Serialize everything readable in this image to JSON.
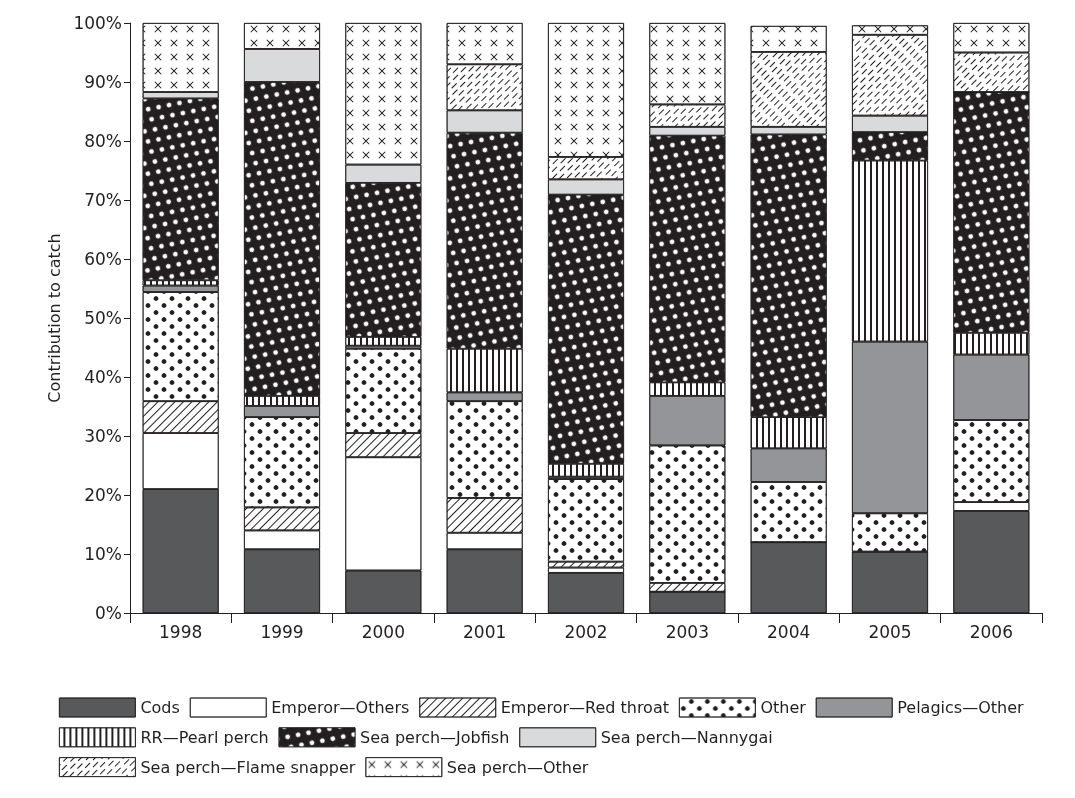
{
  "chart_data": {
    "type": "bar",
    "stacked": true,
    "ylabel": "Contribution to catch",
    "legend": "bottom",
    "categories": [
      "1998",
      "1999",
      "2000",
      "2001",
      "2002",
      "2003",
      "2004",
      "2005",
      "2006"
    ],
    "ylim": [
      0,
      100
    ],
    "yticks": [
      {
        "value": 0,
        "label": "0%"
      },
      {
        "value": 10,
        "label": "10%"
      },
      {
        "value": 20,
        "label": "20%"
      },
      {
        "value": 30,
        "label": "30%"
      },
      {
        "value": 40,
        "label": "40%"
      },
      {
        "value": 50,
        "label": "50%"
      },
      {
        "value": 60,
        "label": "60%"
      },
      {
        "value": 70,
        "label": "70%"
      },
      {
        "value": 80,
        "label": "80%"
      },
      {
        "value": 90,
        "label": "90%"
      },
      {
        "value": 100,
        "label": "100%"
      }
    ],
    "series": [
      {
        "name": "Cods",
        "color": "#58595b",
        "values": [
          21.0,
          10.8,
          7.2,
          10.8,
          6.8,
          3.6,
          12.0,
          10.4,
          17.3
        ]
      },
      {
        "name": "Emperor—Others",
        "color": "#ffffff",
        "values": [
          9.5,
          3.2,
          19.2,
          2.8,
          0.9,
          0,
          0,
          0,
          1.5
        ]
      },
      {
        "name": "Emperor—Red throat",
        "color": "#ffffff",
        "values": [
          5.4,
          3.9,
          4.1,
          5.9,
          1.0,
          1.5,
          0,
          0,
          0
        ]
      },
      {
        "name": "Other",
        "color": "#ffffff",
        "values": [
          18.5,
          15.3,
          14.3,
          16.4,
          14.0,
          23.3,
          10.2,
          6.5,
          13.9
        ]
      },
      {
        "name": "Pelagics—Other",
        "color": "#939598",
        "values": [
          1.1,
          1.9,
          0.5,
          1.5,
          0.4,
          8.4,
          5.7,
          29.1,
          11.1
        ]
      },
      {
        "name": "RR—Pearl perch",
        "color": "#ffffff",
        "values": [
          0.9,
          1.7,
          1.5,
          7.4,
          2.2,
          2.3,
          5.3,
          30.7,
          3.7
        ]
      },
      {
        "name": "Sea perch—Jobfish",
        "color": "#231f20",
        "values": [
          30.8,
          53.2,
          26.1,
          36.6,
          45.6,
          41.8,
          47.9,
          4.8,
          40.8
        ]
      },
      {
        "name": "Sea perch—Nannygai",
        "color": "#d9dadb",
        "values": [
          1.1,
          5.6,
          3.1,
          3.8,
          2.6,
          1.5,
          1.3,
          2.8,
          0
        ]
      },
      {
        "name": "Sea perch—Flame snapper",
        "color": "#ffffff",
        "values": [
          0,
          0,
          0,
          7.8,
          3.8,
          3.8,
          12.7,
          13.7,
          6.7
        ]
      },
      {
        "name": "Sea perch—Other",
        "color": "#ffffff",
        "values": [
          11.7,
          4.4,
          24.0,
          7.0,
          22.7,
          13.8,
          4.4,
          1.6,
          5.0
        ]
      }
    ]
  }
}
